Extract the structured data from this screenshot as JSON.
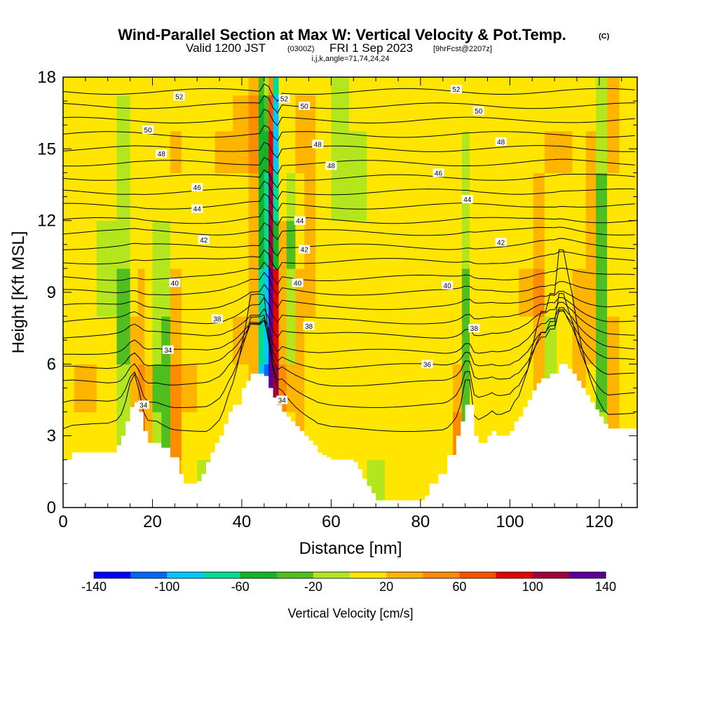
{
  "title": {
    "main": "Wind-Parallel Section at Max W: Vertical Velocity & Pot.Temp.",
    "main_tag": "(C)",
    "valid_prefix": "Valid 1200 JST",
    "valid_utc": "(0300Z)",
    "valid_date": "FRI 1 Sep 2023",
    "fcst": "[9hrFcst@2207z]",
    "ijk": "i,j,k,angle=71,74,24,24"
  },
  "colors": {
    "background": "#ffffff",
    "terrain": "#ffffff",
    "contour": "#000000",
    "scale": [
      "#0000ff",
      "#0064ff",
      "#00c8ff",
      "#00dc96",
      "#14b428",
      "#50be1e",
      "#b4e61e",
      "#ffe600",
      "#ffb400",
      "#ff8c00",
      "#ff5000",
      "#e60000",
      "#a0003c",
      "#5a0096"
    ]
  },
  "chart_data": {
    "type": "heatmap",
    "xlabel": "Distance [nm]",
    "ylabel": "Height [Kft MSL]",
    "xlim": [
      0,
      128.5
    ],
    "ylim": [
      0,
      18
    ],
    "xticks": [
      0,
      20,
      40,
      60,
      80,
      100,
      120
    ],
    "xtick_labels": [
      "0",
      "20",
      "40",
      "60",
      "80",
      "100",
      "120"
    ],
    "yticks": [
      0,
      3,
      6,
      9,
      12,
      15,
      18
    ],
    "ytick_labels": [
      "0",
      "3",
      "6",
      "9",
      "12",
      "15",
      "18"
    ],
    "colorbar": {
      "label": "Vertical Velocity [cm/s]",
      "bounds": [
        -140,
        -120,
        -100,
        -80,
        -60,
        -40,
        -20,
        0,
        20,
        40,
        60,
        80,
        100,
        120,
        140
      ],
      "tick_values": [
        -140,
        -100,
        -60,
        -20,
        20,
        60,
        100,
        140
      ],
      "tick_labels": [
        "-140",
        "-100",
        "-60",
        "-20",
        "20",
        "60",
        "100",
        "140"
      ]
    },
    "terrain_profile": {
      "x": [
        0,
        2,
        10,
        12,
        13,
        14,
        15,
        16,
        17,
        18,
        19,
        20,
        21,
        22,
        24,
        26,
        27,
        28,
        30,
        31,
        32,
        33,
        34,
        35,
        36,
        37,
        38,
        40,
        41,
        42,
        43,
        44,
        45,
        46,
        47,
        48,
        49,
        50,
        51,
        52,
        53,
        54,
        55,
        56,
        57,
        58,
        59,
        60,
        61,
        62,
        63,
        64,
        65,
        66,
        67,
        68,
        69,
        70,
        72,
        74,
        76,
        78,
        79,
        80,
        81,
        82,
        84,
        86,
        88,
        89,
        90,
        91,
        92,
        93,
        95,
        96,
        97,
        98,
        100,
        101,
        102,
        103,
        104,
        105,
        106,
        107,
        108,
        109,
        110,
        111,
        112,
        113,
        114,
        115,
        116,
        117,
        118,
        119,
        120,
        121,
        122,
        123,
        124,
        125,
        126,
        127,
        128.5
      ],
      "h": [
        2.0,
        2.3,
        2.3,
        2.6,
        3.0,
        3.6,
        4.2,
        4.4,
        4.0,
        3.2,
        2.7,
        2.7,
        2.7,
        2.5,
        2.1,
        1.4,
        1.0,
        1.0,
        1.1,
        1.4,
        1.9,
        2.3,
        2.7,
        3.0,
        3.5,
        4.0,
        4.3,
        5.0,
        5.3,
        5.6,
        5.6,
        5.6,
        5.5,
        5.0,
        4.6,
        4.3,
        4.0,
        3.8,
        3.6,
        3.4,
        3.2,
        3.0,
        2.8,
        2.6,
        2.3,
        2.2,
        2.1,
        2.0,
        2.0,
        2.0,
        2.0,
        2.0,
        1.9,
        1.6,
        1.2,
        0.9,
        0.6,
        0.3,
        0.3,
        0.3,
        0.3,
        0.3,
        0.3,
        0.3,
        0.5,
        1.0,
        1.4,
        2.2,
        3.0,
        3.6,
        4.3,
        4.3,
        3.0,
        2.7,
        3.0,
        3.2,
        3.0,
        3.0,
        3.2,
        3.6,
        3.8,
        4.2,
        4.5,
        4.9,
        5.2,
        5.4,
        5.4,
        5.6,
        5.6,
        6.0,
        6.0,
        5.8,
        5.6,
        5.3,
        5.0,
        4.7,
        4.4,
        4.1,
        3.8,
        3.5,
        3.3,
        3.3,
        3.3,
        3.3,
        3.3,
        3.3,
        3.3
      ]
    },
    "w_columns": [
      {
        "x": 0,
        "w": [
          5,
          5,
          12,
          15,
          15,
          10,
          10,
          18,
          15,
          5
        ]
      },
      {
        "x": 5,
        "w": [
          5,
          15,
          20,
          10,
          5,
          5,
          10,
          15,
          12,
          8
        ]
      },
      {
        "x": 10,
        "w": [
          8,
          12,
          18,
          8,
          -5,
          -5,
          8,
          12,
          8,
          8
        ]
      },
      {
        "x": 14,
        "w": [
          -10,
          -15,
          -15,
          -25,
          -25,
          -20,
          -10,
          -8,
          -5,
          5
        ]
      },
      {
        "x": 16,
        "w": [
          20,
          30,
          35,
          20,
          10,
          10,
          5,
          5,
          5,
          10
        ]
      },
      {
        "x": 17.5,
        "w": [
          70,
          60,
          40,
          25,
          20,
          10,
          8,
          5,
          5,
          5
        ]
      },
      {
        "x": 19,
        "w": [
          40,
          35,
          20,
          15,
          10,
          8,
          5,
          5,
          8,
          5
        ]
      },
      {
        "x": 21,
        "w": [
          -20,
          -15,
          -25,
          -15,
          -10,
          -5,
          5,
          10,
          5,
          5
        ]
      },
      {
        "x": 23,
        "w": [
          -45,
          -40,
          -35,
          -30,
          -20,
          -5,
          10,
          10,
          5,
          5
        ]
      },
      {
        "x": 25,
        "w": [
          25,
          40,
          45,
          30,
          20,
          15,
          15,
          20,
          10,
          10
        ]
      },
      {
        "x": 28,
        "w": [
          10,
          15,
          20,
          15,
          10,
          8,
          8,
          15,
          10,
          8
        ]
      },
      {
        "x": 32,
        "w": [
          -5,
          0,
          10,
          12,
          8,
          5,
          8,
          15,
          8,
          5
        ]
      },
      {
        "x": 36,
        "w": [
          5,
          5,
          10,
          15,
          12,
          8,
          10,
          20,
          18,
          10
        ]
      },
      {
        "x": 40,
        "w": [
          10,
          10,
          15,
          20,
          15,
          12,
          15,
          25,
          22,
          15
        ]
      },
      {
        "x": 43,
        "w": [
          5,
          10,
          20,
          30,
          30,
          25,
          35,
          45,
          40,
          25
        ]
      },
      {
        "x": 44.5,
        "w": [
          -60,
          -80,
          -90,
          -80,
          -70,
          -60,
          -50,
          -50,
          -45,
          -30
        ]
      },
      {
        "x": 45.5,
        "w": [
          -140,
          -130,
          -115,
          -100,
          -90,
          -80,
          -70,
          -60,
          -40,
          -20
        ]
      },
      {
        "x": 46.5,
        "w": [
          110,
          120,
          135,
          140,
          130,
          115,
          100,
          80,
          60,
          40
        ]
      },
      {
        "x": 47.5,
        "w": [
          60,
          80,
          100,
          90,
          80,
          -60,
          -80,
          -90,
          -90,
          -80
        ]
      },
      {
        "x": 49,
        "w": [
          30,
          30,
          40,
          35,
          25,
          20,
          15,
          10,
          5,
          5
        ]
      },
      {
        "x": 51,
        "w": [
          10,
          15,
          20,
          -5,
          -20,
          -25,
          -15,
          5,
          10,
          10
        ]
      },
      {
        "x": 53,
        "w": [
          30,
          25,
          30,
          25,
          20,
          15,
          15,
          25,
          20,
          10
        ]
      },
      {
        "x": 55,
        "w": [
          15,
          15,
          10,
          12,
          20,
          25,
          30,
          30,
          25,
          15
        ]
      },
      {
        "x": 58,
        "w": [
          10,
          10,
          5,
          5,
          10,
          15,
          10,
          10,
          8,
          5
        ]
      },
      {
        "x": 62,
        "w": [
          8,
          10,
          10,
          8,
          8,
          5,
          -5,
          -10,
          -20,
          -15
        ]
      },
      {
        "x": 66,
        "w": [
          5,
          10,
          10,
          15,
          10,
          5,
          -5,
          -5,
          5,
          5
        ]
      },
      {
        "x": 70,
        "w": [
          -5,
          5,
          10,
          15,
          15,
          10,
          5,
          0,
          5,
          10
        ]
      },
      {
        "x": 74,
        "w": [
          5,
          8,
          12,
          15,
          15,
          12,
          10,
          5,
          8,
          12
        ]
      },
      {
        "x": 78,
        "w": [
          10,
          12,
          15,
          12,
          10,
          10,
          10,
          8,
          10,
          12
        ]
      },
      {
        "x": 82,
        "w": [
          10,
          12,
          12,
          10,
          8,
          8,
          5,
          5,
          10,
          15
        ]
      },
      {
        "x": 86,
        "w": [
          8,
          10,
          12,
          10,
          8,
          5,
          5,
          8,
          10,
          10
        ]
      },
      {
        "x": 88.5,
        "w": [
          50,
          40,
          25,
          15,
          10,
          8,
          8,
          10,
          10,
          10
        ]
      },
      {
        "x": 90,
        "w": [
          -30,
          -35,
          -40,
          -40,
          -30,
          -20,
          -10,
          -5,
          5,
          5
        ]
      },
      {
        "x": 92,
        "w": [
          10,
          15,
          15,
          10,
          10,
          8,
          8,
          10,
          12,
          10
        ]
      },
      {
        "x": 96,
        "w": [
          5,
          10,
          12,
          15,
          12,
          10,
          8,
          10,
          12,
          10
        ]
      },
      {
        "x": 100,
        "w": [
          5,
          10,
          12,
          15,
          15,
          12,
          10,
          8,
          10,
          10
        ]
      },
      {
        "x": 104,
        "w": [
          10,
          12,
          15,
          15,
          20,
          15,
          12,
          10,
          10,
          8
        ]
      },
      {
        "x": 106.5,
        "w": [
          15,
          20,
          25,
          30,
          40,
          30,
          20,
          15,
          10,
          8
        ]
      },
      {
        "x": 109,
        "w": [
          5,
          0,
          -5,
          -5,
          5,
          10,
          15,
          20,
          12,
          8
        ]
      },
      {
        "x": 112,
        "w": [
          8,
          5,
          5,
          10,
          10,
          12,
          15,
          20,
          15,
          10
        ]
      },
      {
        "x": 116,
        "w": [
          10,
          15,
          25,
          25,
          20,
          15,
          10,
          15,
          15,
          12
        ]
      },
      {
        "x": 118,
        "w": [
          5,
          10,
          15,
          20,
          30,
          35,
          30,
          25,
          15,
          10
        ]
      },
      {
        "x": 120.5,
        "w": [
          -10,
          -20,
          -25,
          -30,
          -35,
          -30,
          -25,
          -20,
          -15,
          -10
        ]
      },
      {
        "x": 123,
        "w": [
          20,
          30,
          25,
          20,
          15,
          15,
          15,
          20,
          25,
          20
        ]
      },
      {
        "x": 126,
        "w": [
          10,
          10,
          8,
          8,
          10,
          10,
          8,
          10,
          10,
          8
        ]
      },
      {
        "x": 128.5,
        "w": [
          5,
          5,
          5,
          5,
          5,
          5,
          5,
          5,
          5,
          5
        ]
      }
    ],
    "w_levels": [
      1,
      3,
      5,
      7,
      9,
      11,
      13,
      15,
      16.5,
      18
    ],
    "theta_contours": [
      {
        "base": 3.3,
        "step": 0.0
      },
      {
        "base": 4.3,
        "step": 0.0
      },
      {
        "base": 5.2,
        "step": 0.0
      },
      {
        "base": 5.9,
        "step": 0.0
      },
      {
        "base": 6.5,
        "step": 0.0
      },
      {
        "base": 7.2,
        "step": 0.0
      },
      {
        "base": 7.8,
        "step": 0.0
      },
      {
        "base": 8.4,
        "step": 0.0
      },
      {
        "base": 9.0,
        "step": 0.0
      },
      {
        "base": 9.6,
        "step": 0.0
      },
      {
        "base": 10.3,
        "step": 0.0
      },
      {
        "base": 10.9,
        "step": 0.0
      },
      {
        "base": 11.5,
        "step": 0.0
      },
      {
        "base": 12.0,
        "step": 0.0
      },
      {
        "base": 12.6,
        "step": 0.0
      },
      {
        "base": 13.2,
        "step": 0.0
      },
      {
        "base": 13.8,
        "step": 0.0
      },
      {
        "base": 14.4,
        "step": 0.0
      },
      {
        "base": 15.0,
        "step": 0.0
      },
      {
        "base": 15.6,
        "step": 0.0
      },
      {
        "base": 16.2,
        "step": 0.0
      },
      {
        "base": 16.8,
        "step": 0.0
      },
      {
        "base": 17.4,
        "step": 0.0
      }
    ],
    "contour_labels": [
      {
        "text": "52",
        "x": 26,
        "y": 17.2
      },
      {
        "text": "50",
        "x": 19,
        "y": 15.8
      },
      {
        "text": "48",
        "x": 22,
        "y": 14.8
      },
      {
        "text": "46",
        "x": 30,
        "y": 13.4
      },
      {
        "text": "44",
        "x": 30,
        "y": 12.5
      },
      {
        "text": "42",
        "x": 31.5,
        "y": 11.2
      },
      {
        "text": "40",
        "x": 25,
        "y": 9.4
      },
      {
        "text": "38",
        "x": 34.5,
        "y": 7.9
      },
      {
        "text": "34",
        "x": 23.5,
        "y": 6.6
      },
      {
        "text": "34",
        "x": 18,
        "y": 4.3
      },
      {
        "text": "52",
        "x": 49.5,
        "y": 17.1
      },
      {
        "text": "50",
        "x": 54,
        "y": 16.8
      },
      {
        "text": "48",
        "x": 57,
        "y": 15.2
      },
      {
        "text": "48",
        "x": 60,
        "y": 14.3
      },
      {
        "text": "44",
        "x": 53,
        "y": 12.0
      },
      {
        "text": "42",
        "x": 54,
        "y": 10.8
      },
      {
        "text": "40",
        "x": 52.5,
        "y": 9.4
      },
      {
        "text": "38",
        "x": 55,
        "y": 7.6
      },
      {
        "text": "34",
        "x": 49,
        "y": 4.5
      },
      {
        "text": "52",
        "x": 88,
        "y": 17.5
      },
      {
        "text": "50",
        "x": 93,
        "y": 16.6
      },
      {
        "text": "48",
        "x": 98,
        "y": 15.3
      },
      {
        "text": "46",
        "x": 84,
        "y": 14.0
      },
      {
        "text": "44",
        "x": 90.5,
        "y": 12.9
      },
      {
        "text": "42",
        "x": 98,
        "y": 11.1
      },
      {
        "text": "40",
        "x": 86,
        "y": 9.3
      },
      {
        "text": "38",
        "x": 92,
        "y": 7.5
      },
      {
        "text": "36",
        "x": 81.5,
        "y": 6.0
      }
    ]
  }
}
